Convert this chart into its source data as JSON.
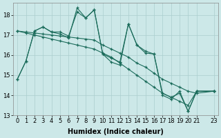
{
  "title": "",
  "xlabel": "Humidex (Indice chaleur)",
  "bg_color": "#cce8e8",
  "line_color": "#1a6b5a",
  "grid_color": "#aacece",
  "xlim": [
    -0.5,
    23.5
  ],
  "ylim": [
    13.0,
    18.6
  ],
  "yticks": [
    13,
    14,
    15,
    16,
    17,
    18
  ],
  "xticks": [
    0,
    1,
    2,
    3,
    4,
    5,
    6,
    7,
    8,
    9,
    10,
    11,
    12,
    13,
    14,
    15,
    16,
    17,
    18,
    19,
    20,
    21,
    23
  ],
  "x_values": [
    0,
    1,
    2,
    3,
    4,
    5,
    6,
    7,
    8,
    9,
    10,
    11,
    12,
    13,
    14,
    15,
    16,
    17,
    18,
    19,
    20,
    21,
    23
  ],
  "series": [
    [
      14.8,
      15.7,
      17.2,
      17.4,
      17.15,
      17.05,
      16.85,
      18.35,
      17.85,
      18.25,
      16.05,
      15.65,
      15.5,
      17.55,
      16.5,
      16.2,
      16.05,
      14.0,
      13.8,
      14.2,
      13.2,
      14.2,
      14.2
    ],
    [
      14.8,
      15.7,
      17.2,
      17.4,
      17.15,
      17.15,
      16.95,
      18.15,
      17.85,
      18.25,
      16.05,
      15.85,
      15.65,
      17.55,
      16.5,
      16.1,
      16.05,
      14.1,
      13.9,
      14.1,
      13.2,
      14.2,
      14.2
    ],
    [
      17.2,
      17.15,
      17.1,
      17.05,
      17.0,
      16.95,
      16.9,
      16.85,
      16.8,
      16.75,
      16.5,
      16.3,
      16.1,
      15.9,
      15.6,
      15.4,
      15.1,
      14.8,
      14.6,
      14.4,
      14.2,
      14.1,
      14.2
    ],
    [
      17.2,
      17.1,
      17.0,
      16.9,
      16.8,
      16.7,
      16.6,
      16.5,
      16.4,
      16.3,
      16.1,
      15.9,
      15.6,
      15.3,
      15.0,
      14.7,
      14.4,
      14.1,
      13.9,
      13.7,
      13.5,
      14.2,
      14.2
    ]
  ]
}
